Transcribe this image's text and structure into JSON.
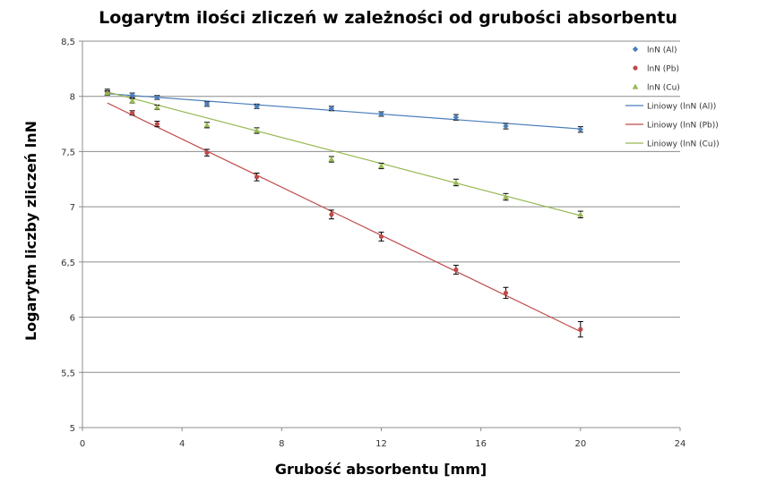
{
  "chart_data": {
    "type": "scatter",
    "title": "Logarytm ilości zliczeń w zależności od grubości absorbentu",
    "xlabel": "Grubość absorbentu [mm]",
    "ylabel": "Logarytm liczby  zliczeń lnN",
    "xlim": [
      0,
      24
    ],
    "ylim": [
      5,
      8.5
    ],
    "xticks": [
      "0",
      "4",
      "8",
      "12",
      "16",
      "20",
      "24"
    ],
    "yticks": [
      "5",
      "5,5",
      "6",
      "6,5",
      "7",
      "7,5",
      "8",
      "8,5"
    ],
    "grid": "horizontal",
    "legend_position": "right",
    "x": [
      1,
      2,
      3,
      5,
      7,
      10,
      12,
      15,
      17,
      20
    ],
    "series": [
      {
        "name": "lnN (Al)",
        "marker": "diamond",
        "color": "#4a7ebb",
        "values": [
          8.04,
          8.01,
          7.99,
          7.93,
          7.91,
          7.89,
          7.84,
          7.81,
          7.73,
          7.7
        ],
        "error": [
          0.025,
          0.02,
          0.018,
          0.02,
          0.02,
          0.02,
          0.02,
          0.025,
          0.025,
          0.025
        ]
      },
      {
        "name": "lnN (Pb)",
        "marker": "circle",
        "color": "#be4b48",
        "values": [
          8.03,
          7.85,
          7.75,
          7.49,
          7.27,
          6.93,
          6.73,
          6.43,
          6.22,
          5.89
        ],
        "error": [
          0.02,
          0.02,
          0.025,
          0.03,
          0.035,
          0.04,
          0.04,
          0.04,
          0.05,
          0.07
        ]
      },
      {
        "name": "lnN (Cu)",
        "marker": "triangle",
        "color": "#98b954",
        "values": [
          8.03,
          7.96,
          7.9,
          7.74,
          7.69,
          7.43,
          7.37,
          7.22,
          7.09,
          6.93
        ],
        "error": [
          0.02,
          0.02,
          0.02,
          0.025,
          0.025,
          0.025,
          0.025,
          0.03,
          0.03,
          0.03
        ]
      }
    ],
    "trendlines": [
      {
        "name": "Liniowy (lnN (Al))",
        "color": "#4a7ebb",
        "x": [
          1,
          20
        ],
        "y": [
          8.025,
          7.705
        ]
      },
      {
        "name": "Liniowy (lnN (Pb))",
        "color": "#be4b48",
        "x": [
          1,
          20
        ],
        "y": [
          7.94,
          5.87
        ]
      },
      {
        "name": "Liniowy (lnN (Cu))",
        "color": "#98b954",
        "x": [
          1,
          20
        ],
        "y": [
          8.04,
          6.92
        ]
      }
    ]
  }
}
